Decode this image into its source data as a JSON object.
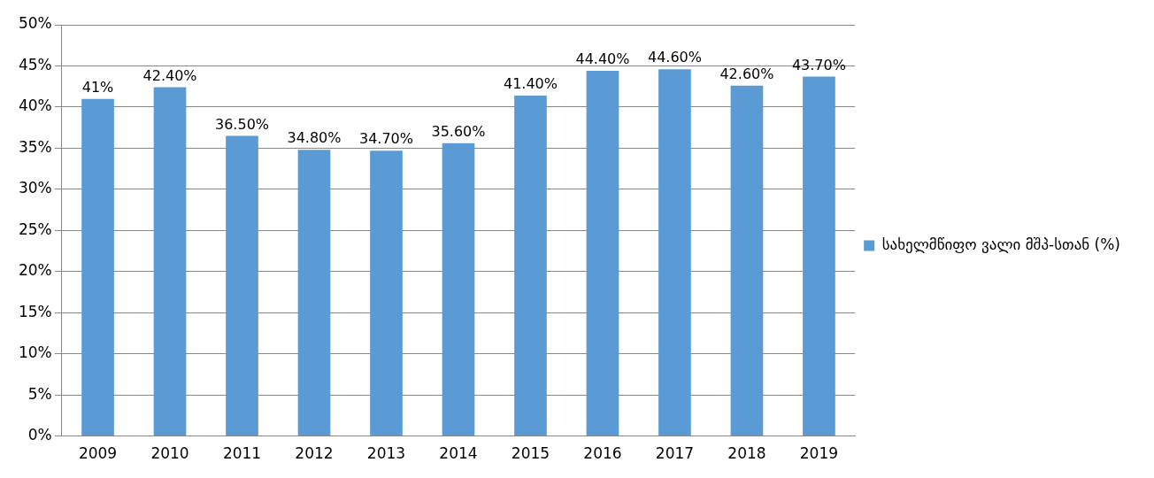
{
  "chart_data": {
    "type": "bar",
    "categories": [
      "2009",
      "2010",
      "2011",
      "2012",
      "2013",
      "2014",
      "2015",
      "2016",
      "2017",
      "2018",
      "2019"
    ],
    "series": [
      {
        "name": "სახელმწიფო ვალი მშპ-სთან (%)",
        "color": "#5b9bd5",
        "values": [
          41,
          42.4,
          36.5,
          34.8,
          34.7,
          35.6,
          41.4,
          44.4,
          44.6,
          42.6,
          43.7
        ],
        "value_labels": [
          "41%",
          "42.40%",
          "36.50%",
          "34.80%",
          "34.70%",
          "35.60%",
          "41.40%",
          "44.40%",
          "44.60%",
          "42.60%",
          "43.70%"
        ]
      }
    ],
    "ylim": [
      0,
      50
    ],
    "yticks": [
      {
        "value": 0,
        "label": "0%"
      },
      {
        "value": 5,
        "label": "5%"
      },
      {
        "value": 10,
        "label": "10%"
      },
      {
        "value": 15,
        "label": "15%"
      },
      {
        "value": 20,
        "label": "20%"
      },
      {
        "value": 25,
        "label": "25%"
      },
      {
        "value": 30,
        "label": "30%"
      },
      {
        "value": 35,
        "label": "35%"
      },
      {
        "value": 40,
        "label": "40%"
      },
      {
        "value": 45,
        "label": "45%"
      },
      {
        "value": 50,
        "label": "50%"
      }
    ],
    "grid": "y",
    "legend": "right"
  }
}
